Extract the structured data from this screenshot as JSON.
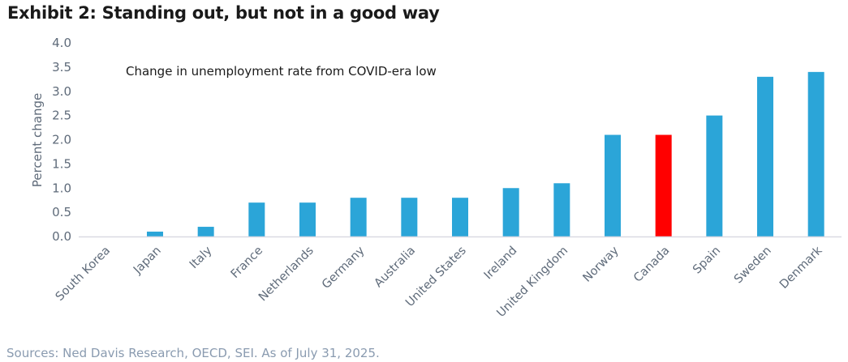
{
  "header": {
    "title": "Exhibit 2: Standing out, but not in a good way"
  },
  "footer": {
    "source": "Sources: Ned Davis Research, OECD, SEI. As of July 31, 2025."
  },
  "colors": {
    "default_bar": "#2ba5d8",
    "highlight_bar": "#ff0000",
    "axis_line": "#d9d9e3",
    "tick_text": "#5f6b7a"
  },
  "chart_data": {
    "type": "bar",
    "title": "Exhibit 2: Standing out, but not in a good way",
    "annotation": "Change in unemployment rate from COVID-era low",
    "xlabel": "",
    "ylabel": "Percent change",
    "ylim": [
      0,
      4.0
    ],
    "yticks": [
      "0.0",
      "0.5",
      "1.0",
      "1.5",
      "2.0",
      "2.5",
      "3.0",
      "3.5",
      "4.0"
    ],
    "grid": false,
    "legend": "none",
    "categories": [
      "South Korea",
      "Japan",
      "Italy",
      "France",
      "Netherlands",
      "Germany",
      "Australia",
      "United States",
      "Ireland",
      "United Kingdom",
      "Norway",
      "Canada",
      "Spain",
      "Sweden",
      "Denmark"
    ],
    "values": [
      0.0,
      0.1,
      0.2,
      0.7,
      0.7,
      0.8,
      0.8,
      0.8,
      1.0,
      1.1,
      2.1,
      2.1,
      2.5,
      3.3,
      3.4
    ],
    "highlight": "Canada"
  }
}
